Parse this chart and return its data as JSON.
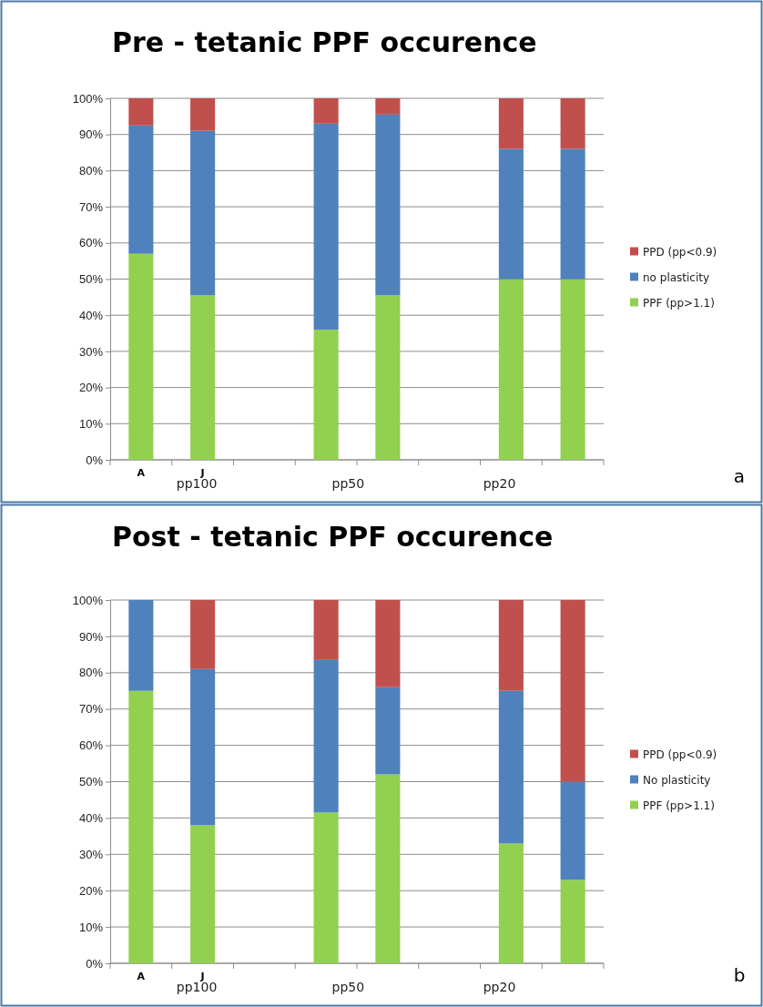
{
  "chart_data": [
    {
      "type": "bar",
      "title": "Pre - tetanic PPF occurence",
      "stacked": true,
      "legend": "right",
      "grid": "y",
      "categories": [
        "A",
        "J",
        null,
        null,
        null,
        null,
        null,
        null
      ],
      "series": [
        {
          "name": "PPF (pp>1.1)",
          "color": "#92d050",
          "values": [
            57,
            45.5,
            null,
            36,
            45.5,
            null,
            50,
            50
          ]
        },
        {
          "name": "no plasticity",
          "color": "#4f81bd",
          "values": [
            35.5,
            45.5,
            null,
            57,
            50,
            null,
            36,
            36
          ]
        },
        {
          "name": "PPD (pp<0.9)",
          "color": "#c0504d",
          "values": [
            7.5,
            9,
            null,
            7,
            4.5,
            null,
            14,
            14
          ]
        }
      ],
      "ylim": [
        0,
        100
      ],
      "yticks": [
        {
          "value": 0,
          "label": "0%"
        },
        {
          "value": 10,
          "label": "10%"
        },
        {
          "value": 20,
          "label": "20%"
        },
        {
          "value": 30,
          "label": "30%"
        },
        {
          "value": 40,
          "label": "40%"
        },
        {
          "value": 50,
          "label": "50%"
        },
        {
          "value": 60,
          "label": "60%"
        },
        {
          "value": 70,
          "label": "70%"
        },
        {
          "value": 80,
          "label": "80%"
        },
        {
          "value": 90,
          "label": "90%"
        },
        {
          "value": 100,
          "label": "100%"
        }
      ],
      "annotations": [
        "pp100",
        "pp50",
        "pp20",
        "a"
      ]
    },
    {
      "type": "bar",
      "title": "Post - tetanic PPF occurence",
      "stacked": true,
      "legend": "right",
      "grid": "y",
      "categories": [
        "A",
        "J",
        null,
        null,
        null,
        null,
        null,
        null
      ],
      "series": [
        {
          "name": "PPF (pp>1.1)",
          "color": "#92d050",
          "values": [
            75,
            38,
            null,
            41.5,
            52,
            null,
            33,
            23
          ]
        },
        {
          "name": "No plasticity",
          "color": "#4f81bd",
          "values": [
            25,
            43,
            null,
            42,
            24,
            null,
            42,
            27
          ]
        },
        {
          "name": "PPD (pp<0.9)",
          "color": "#c0504d",
          "values": [
            0,
            19,
            null,
            16.5,
            24,
            null,
            25,
            50
          ]
        }
      ],
      "ylim": [
        0,
        100
      ],
      "yticks": [
        {
          "value": 0,
          "label": "0%"
        },
        {
          "value": 10,
          "label": "10%"
        },
        {
          "value": 20,
          "label": "20%"
        },
        {
          "value": 30,
          "label": "30%"
        },
        {
          "value": 40,
          "label": "40%"
        },
        {
          "value": 50,
          "label": "50%"
        },
        {
          "value": 60,
          "label": "60%"
        },
        {
          "value": 70,
          "label": "70%"
        },
        {
          "value": 80,
          "label": "80%"
        },
        {
          "value": 90,
          "label": "90%"
        },
        {
          "value": 100,
          "label": "100%"
        }
      ],
      "annotations": [
        "pp100",
        "pp50",
        "pp20",
        "b"
      ]
    }
  ]
}
